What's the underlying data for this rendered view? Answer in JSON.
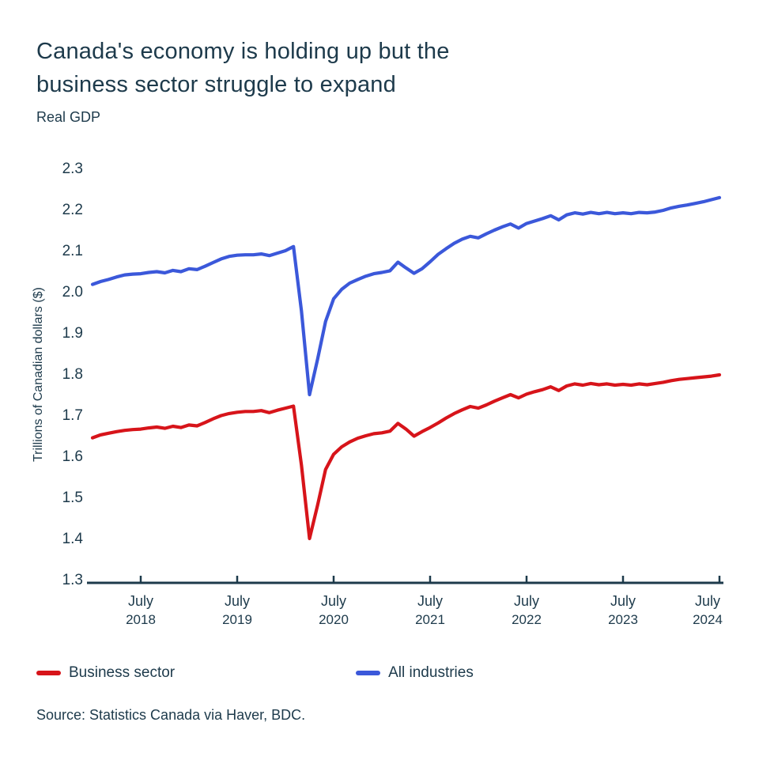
{
  "header": {
    "title": "Canada's economy is holding up but the\nbusiness sector struggle to expand",
    "subtitle": "Real GDP"
  },
  "footer": {
    "source": "Source: Statistics Canada via Haver, BDC."
  },
  "colors": {
    "text": "#1d3a4b",
    "axis": "#1d3a4b",
    "business": "#d7141a",
    "industries": "#3b58da"
  },
  "legend": [
    {
      "label": "Business sector",
      "color_key": "business"
    },
    {
      "label": "All industries",
      "color_key": "industries"
    }
  ],
  "chart_data": {
    "type": "line",
    "title": "Real GDP",
    "xlabel": "",
    "ylabel": "Trillions of Canadian dollars ($)",
    "ylim": [
      1.3,
      2.3
    ],
    "y_tick_step": 0.1,
    "grid": false,
    "legend_position": "bottom",
    "x_frequency": "monthly",
    "x_start": "2018-01",
    "x_end": "2024-07",
    "x_tick_labels": [
      [
        "July",
        "2018"
      ],
      [
        "July",
        "2019"
      ],
      [
        "July",
        "2020"
      ],
      [
        "July",
        "2021"
      ],
      [
        "July",
        "2022"
      ],
      [
        "July",
        "2023"
      ],
      [
        "July",
        "2024"
      ]
    ],
    "series": [
      {
        "name": "Business sector",
        "color_key": "business",
        "values": [
          1.647,
          1.654,
          1.658,
          1.662,
          1.665,
          1.667,
          1.668,
          1.671,
          1.673,
          1.67,
          1.675,
          1.672,
          1.678,
          1.676,
          1.684,
          1.693,
          1.701,
          1.706,
          1.709,
          1.711,
          1.711,
          1.713,
          1.708,
          1.714,
          1.719,
          1.724,
          1.58,
          1.402,
          1.483,
          1.57,
          1.607,
          1.625,
          1.637,
          1.646,
          1.652,
          1.657,
          1.659,
          1.663,
          1.682,
          1.668,
          1.651,
          1.662,
          1.672,
          1.683,
          1.695,
          1.706,
          1.715,
          1.723,
          1.719,
          1.727,
          1.736,
          1.744,
          1.752,
          1.744,
          1.753,
          1.759,
          1.764,
          1.771,
          1.762,
          1.773,
          1.778,
          1.775,
          1.779,
          1.776,
          1.778,
          1.775,
          1.777,
          1.775,
          1.778,
          1.776,
          1.779,
          1.782,
          1.786,
          1.789,
          1.791,
          1.793,
          1.795,
          1.797,
          1.8
        ]
      },
      {
        "name": "All industries",
        "color_key": "industries",
        "values": [
          2.02,
          2.027,
          2.032,
          2.038,
          2.043,
          2.045,
          2.046,
          2.049,
          2.051,
          2.048,
          2.054,
          2.051,
          2.058,
          2.056,
          2.064,
          2.073,
          2.082,
          2.088,
          2.091,
          2.092,
          2.092,
          2.094,
          2.09,
          2.096,
          2.102,
          2.112,
          1.955,
          1.752,
          1.838,
          1.93,
          1.985,
          2.008,
          2.023,
          2.032,
          2.04,
          2.046,
          2.049,
          2.053,
          2.074,
          2.06,
          2.047,
          2.058,
          2.075,
          2.093,
          2.107,
          2.12,
          2.13,
          2.137,
          2.133,
          2.143,
          2.152,
          2.16,
          2.167,
          2.157,
          2.168,
          2.174,
          2.18,
          2.187,
          2.177,
          2.189,
          2.194,
          2.191,
          2.195,
          2.192,
          2.195,
          2.192,
          2.194,
          2.192,
          2.195,
          2.194,
          2.196,
          2.2,
          2.206,
          2.21,
          2.213,
          2.217,
          2.221,
          2.226,
          2.231
        ]
      }
    ]
  }
}
